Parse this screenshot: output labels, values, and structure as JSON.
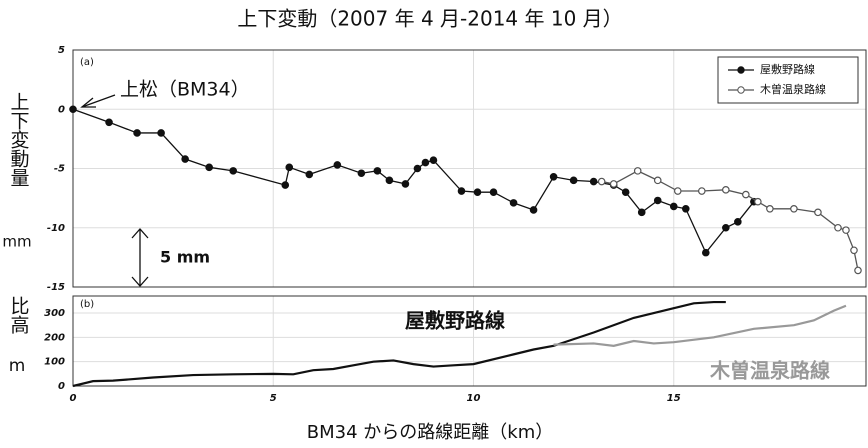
{
  "chart_data": [
    {
      "type": "line",
      "title": "上下変動（2007 年 4 月-2014 年 10 月）",
      "panel_label": "(a)",
      "ylabel": "上下変動量",
      "ylabel_unit": "mm",
      "annotations": [
        "上松（BM34）",
        "5 mm"
      ],
      "xlim": [
        0,
        19.8
      ],
      "xticks": [
        0,
        5,
        10,
        15
      ],
      "ylim": [
        -15,
        5
      ],
      "yticks": [
        -15,
        -10,
        -5,
        0,
        5
      ],
      "grid": true,
      "legend": "upper right",
      "series": [
        {
          "name": "屋敷野路線",
          "color": "#111111",
          "marker": "filled",
          "x": [
            0,
            0.9,
            1.6,
            2.2,
            2.8,
            3.4,
            4,
            5.3,
            5.4,
            5.9,
            6.6,
            7.2,
            7.6,
            7.9,
            8.3,
            8.6,
            8.8,
            9,
            9.7,
            10.1,
            10.5,
            11,
            11.5,
            12,
            12.5,
            13,
            13.5,
            13.8,
            14.2,
            14.6,
            15,
            15.3,
            15.8,
            16.3,
            16.6,
            17
          ],
          "values": [
            0,
            -1.1,
            -2,
            -2,
            -4.2,
            -4.9,
            -5.2,
            -6.4,
            -4.9,
            -5.5,
            -4.7,
            -5.4,
            -5.2,
            -6,
            -6.3,
            -5,
            -4.5,
            -4.3,
            -6.9,
            -7,
            -7,
            -7.9,
            -8.5,
            -5.7,
            -6,
            -6.1,
            -6.4,
            -7,
            -8.7,
            -7.7,
            -8.2,
            -8.4,
            -12.1,
            -10,
            -9.5,
            -7.8
          ]
        },
        {
          "name": "木曽温泉路線",
          "color": "#555555",
          "marker": "open",
          "x": [
            13.2,
            13.5,
            14.1,
            14.6,
            15.1,
            15.7,
            16.3,
            16.8,
            17.1,
            17.4,
            18,
            18.6,
            19.1,
            19.3,
            19.5,
            19.6
          ],
          "values": [
            -6.1,
            -6.3,
            -5.2,
            -6,
            -6.9,
            -6.9,
            -6.8,
            -7.2,
            -7.8,
            -8.4,
            -8.4,
            -8.7,
            -10,
            -10.2,
            -11.9,
            -13.6
          ]
        }
      ]
    },
    {
      "type": "line",
      "panel_label": "(b)",
      "ylabel": "比高",
      "ylabel_unit": "m",
      "xlabel": "BM34 からの路線距離（km）",
      "xlim": [
        0,
        19.8
      ],
      "xticks": [
        0,
        5,
        10,
        15
      ],
      "ylim": [
        0,
        370
      ],
      "yticks": [
        0,
        100,
        200,
        300
      ],
      "grid": true,
      "legend": "inline",
      "series": [
        {
          "name": "屋敷野路線",
          "color": "#111111",
          "x": [
            0,
            0.5,
            1,
            2,
            3,
            4,
            5,
            5.5,
            6,
            6.5,
            7,
            7.5,
            8,
            8.5,
            9,
            9.5,
            10,
            11,
            11.5,
            12,
            13,
            14,
            15,
            15.5,
            16,
            16.3
          ],
          "values": [
            0,
            20,
            22,
            35,
            45,
            48,
            50,
            48,
            65,
            70,
            85,
            100,
            105,
            90,
            80,
            85,
            90,
            130,
            150,
            165,
            220,
            280,
            320,
            340,
            345,
            345
          ]
        },
        {
          "name": "木曽温泉路線",
          "color": "#999999",
          "x": [
            12,
            13,
            13.5,
            14,
            14.5,
            15,
            16,
            17,
            18,
            18.5,
            19,
            19.3
          ],
          "values": [
            170,
            175,
            165,
            185,
            175,
            180,
            200,
            235,
            250,
            270,
            310,
            330
          ]
        }
      ]
    }
  ]
}
